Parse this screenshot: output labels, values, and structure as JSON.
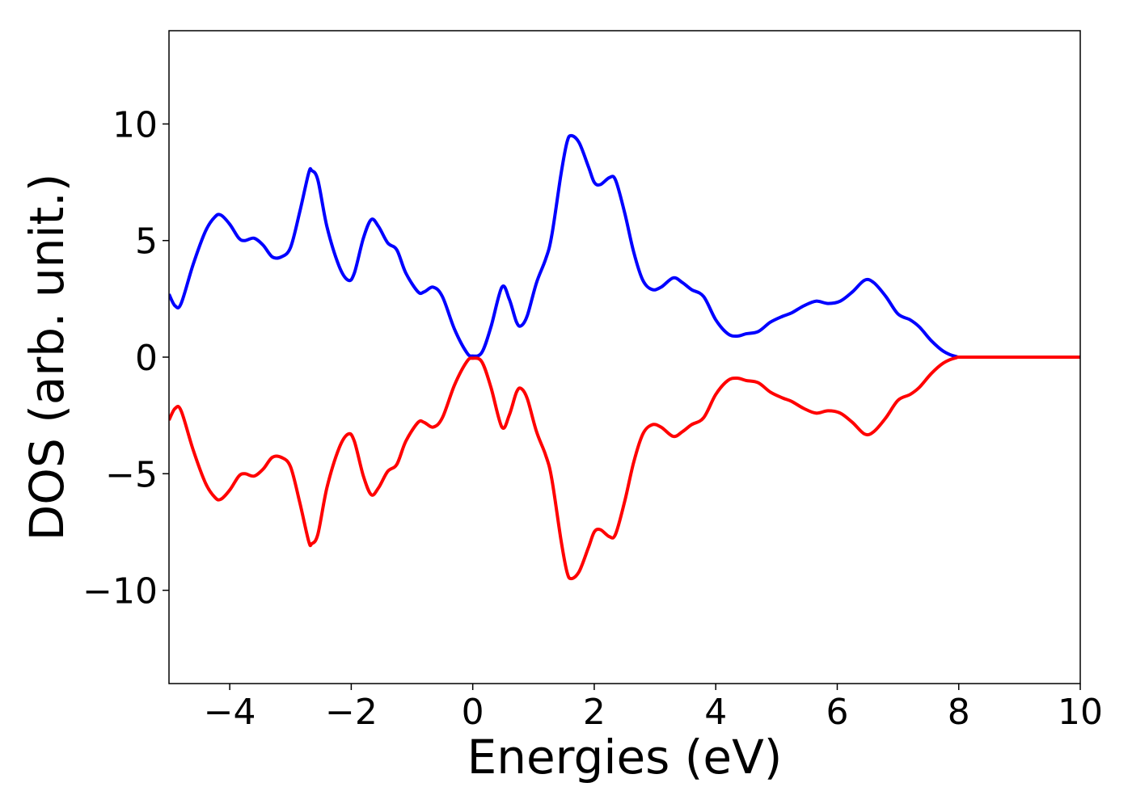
{
  "chart_data": {
    "type": "line",
    "title": "",
    "xlabel": "Energies (eV)",
    "ylabel": "DOS (arb. unit.)",
    "xlim": [
      -5,
      10
    ],
    "ylim": [
      -14,
      14
    ],
    "xticks": [
      -4,
      -2,
      0,
      2,
      4,
      6,
      8,
      10
    ],
    "yticks": [
      -10,
      -5,
      0,
      5,
      10
    ],
    "xtick_labels": [
      "−4",
      "−2",
      "0",
      "2",
      "4",
      "6",
      "8",
      "10"
    ],
    "ytick_labels": [
      "−10",
      "−5",
      "0",
      "5",
      "10"
    ],
    "grid": false,
    "colors": {
      "spin_up": "#0000ff",
      "spin_down": "#ff0000"
    },
    "series": [
      {
        "color": "#0000ff",
        "points": [
          [
            -5.0,
            2.7
          ],
          [
            -4.9,
            2.2
          ],
          [
            -4.8,
            2.3
          ],
          [
            -4.6,
            4.0
          ],
          [
            -4.4,
            5.4
          ],
          [
            -4.25,
            6.0
          ],
          [
            -4.15,
            6.1
          ],
          [
            -4.0,
            5.7
          ],
          [
            -3.85,
            5.1
          ],
          [
            -3.75,
            5.0
          ],
          [
            -3.6,
            5.1
          ],
          [
            -3.45,
            4.8
          ],
          [
            -3.3,
            4.3
          ],
          [
            -3.15,
            4.3
          ],
          [
            -3.0,
            4.7
          ],
          [
            -2.85,
            6.2
          ],
          [
            -2.7,
            7.9
          ],
          [
            -2.65,
            8.0
          ],
          [
            -2.55,
            7.6
          ],
          [
            -2.4,
            5.6
          ],
          [
            -2.2,
            3.9
          ],
          [
            -2.05,
            3.3
          ],
          [
            -1.95,
            3.6
          ],
          [
            -1.8,
            5.1
          ],
          [
            -1.67,
            5.9
          ],
          [
            -1.55,
            5.6
          ],
          [
            -1.4,
            4.9
          ],
          [
            -1.25,
            4.6
          ],
          [
            -1.1,
            3.6
          ],
          [
            -0.9,
            2.8
          ],
          [
            -0.8,
            2.8
          ],
          [
            -0.65,
            3.0
          ],
          [
            -0.5,
            2.6
          ],
          [
            -0.3,
            1.2
          ],
          [
            -0.1,
            0.2
          ],
          [
            0.0,
            0.05
          ],
          [
            0.15,
            0.2
          ],
          [
            0.3,
            1.3
          ],
          [
            0.48,
            3.0
          ],
          [
            0.6,
            2.5
          ],
          [
            0.72,
            1.5
          ],
          [
            0.8,
            1.35
          ],
          [
            0.9,
            1.8
          ],
          [
            1.05,
            3.2
          ],
          [
            1.2,
            4.2
          ],
          [
            1.3,
            5.2
          ],
          [
            1.45,
            7.8
          ],
          [
            1.55,
            9.2
          ],
          [
            1.62,
            9.5
          ],
          [
            1.75,
            9.2
          ],
          [
            1.9,
            8.2
          ],
          [
            2.0,
            7.5
          ],
          [
            2.1,
            7.4
          ],
          [
            2.25,
            7.7
          ],
          [
            2.35,
            7.6
          ],
          [
            2.5,
            6.2
          ],
          [
            2.65,
            4.5
          ],
          [
            2.8,
            3.3
          ],
          [
            2.95,
            2.9
          ],
          [
            3.1,
            3.0
          ],
          [
            3.3,
            3.4
          ],
          [
            3.45,
            3.2
          ],
          [
            3.6,
            2.9
          ],
          [
            3.8,
            2.6
          ],
          [
            4.0,
            1.6
          ],
          [
            4.2,
            1.0
          ],
          [
            4.35,
            0.9
          ],
          [
            4.5,
            1.0
          ],
          [
            4.7,
            1.1
          ],
          [
            4.9,
            1.5
          ],
          [
            5.1,
            1.75
          ],
          [
            5.25,
            1.9
          ],
          [
            5.45,
            2.2
          ],
          [
            5.65,
            2.4
          ],
          [
            5.85,
            2.3
          ],
          [
            6.05,
            2.4
          ],
          [
            6.25,
            2.8
          ],
          [
            6.45,
            3.3
          ],
          [
            6.6,
            3.2
          ],
          [
            6.8,
            2.6
          ],
          [
            7.0,
            1.85
          ],
          [
            7.2,
            1.6
          ],
          [
            7.35,
            1.3
          ],
          [
            7.55,
            0.7
          ],
          [
            7.75,
            0.25
          ],
          [
            7.95,
            0.03
          ],
          [
            8.2,
            0.0
          ],
          [
            10.0,
            0.0
          ]
        ]
      },
      {
        "color": "#ff0000",
        "points": [
          [
            -5.0,
            -2.7
          ],
          [
            -4.9,
            -2.2
          ],
          [
            -4.8,
            -2.3
          ],
          [
            -4.6,
            -4.0
          ],
          [
            -4.4,
            -5.4
          ],
          [
            -4.25,
            -6.0
          ],
          [
            -4.15,
            -6.1
          ],
          [
            -4.0,
            -5.7
          ],
          [
            -3.85,
            -5.1
          ],
          [
            -3.75,
            -5.0
          ],
          [
            -3.6,
            -5.1
          ],
          [
            -3.45,
            -4.8
          ],
          [
            -3.3,
            -4.3
          ],
          [
            -3.15,
            -4.3
          ],
          [
            -3.0,
            -4.7
          ],
          [
            -2.85,
            -6.2
          ],
          [
            -2.7,
            -7.9
          ],
          [
            -2.65,
            -8.0
          ],
          [
            -2.55,
            -7.6
          ],
          [
            -2.4,
            -5.6
          ],
          [
            -2.2,
            -3.9
          ],
          [
            -2.05,
            -3.3
          ],
          [
            -1.95,
            -3.6
          ],
          [
            -1.8,
            -5.1
          ],
          [
            -1.67,
            -5.9
          ],
          [
            -1.55,
            -5.6
          ],
          [
            -1.4,
            -4.9
          ],
          [
            -1.25,
            -4.6
          ],
          [
            -1.1,
            -3.6
          ],
          [
            -0.9,
            -2.8
          ],
          [
            -0.8,
            -2.8
          ],
          [
            -0.65,
            -3.0
          ],
          [
            -0.5,
            -2.6
          ],
          [
            -0.3,
            -1.2
          ],
          [
            -0.1,
            -0.2
          ],
          [
            0.0,
            -0.05
          ],
          [
            0.15,
            -0.2
          ],
          [
            0.3,
            -1.3
          ],
          [
            0.48,
            -3.0
          ],
          [
            0.6,
            -2.5
          ],
          [
            0.72,
            -1.5
          ],
          [
            0.8,
            -1.35
          ],
          [
            0.9,
            -1.8
          ],
          [
            1.05,
            -3.2
          ],
          [
            1.2,
            -4.2
          ],
          [
            1.3,
            -5.2
          ],
          [
            1.45,
            -7.8
          ],
          [
            1.55,
            -9.2
          ],
          [
            1.62,
            -9.5
          ],
          [
            1.75,
            -9.2
          ],
          [
            1.9,
            -8.2
          ],
          [
            2.0,
            -7.5
          ],
          [
            2.1,
            -7.4
          ],
          [
            2.25,
            -7.7
          ],
          [
            2.35,
            -7.6
          ],
          [
            2.5,
            -6.2
          ],
          [
            2.65,
            -4.5
          ],
          [
            2.8,
            -3.3
          ],
          [
            2.95,
            -2.9
          ],
          [
            3.1,
            -3.0
          ],
          [
            3.3,
            -3.4
          ],
          [
            3.45,
            -3.2
          ],
          [
            3.6,
            -2.9
          ],
          [
            3.8,
            -2.6
          ],
          [
            4.0,
            -1.6
          ],
          [
            4.2,
            -1.0
          ],
          [
            4.35,
            -0.9
          ],
          [
            4.5,
            -1.0
          ],
          [
            4.7,
            -1.1
          ],
          [
            4.9,
            -1.5
          ],
          [
            5.1,
            -1.75
          ],
          [
            5.25,
            -1.9
          ],
          [
            5.45,
            -2.2
          ],
          [
            5.65,
            -2.4
          ],
          [
            5.85,
            -2.3
          ],
          [
            6.05,
            -2.4
          ],
          [
            6.25,
            -2.8
          ],
          [
            6.45,
            -3.3
          ],
          [
            6.6,
            -3.2
          ],
          [
            6.8,
            -2.6
          ],
          [
            7.0,
            -1.85
          ],
          [
            7.2,
            -1.6
          ],
          [
            7.35,
            -1.3
          ],
          [
            7.55,
            -0.7
          ],
          [
            7.75,
            -0.25
          ],
          [
            7.95,
            -0.03
          ],
          [
            8.2,
            0.0
          ],
          [
            10.0,
            0.0
          ]
        ]
      }
    ]
  }
}
